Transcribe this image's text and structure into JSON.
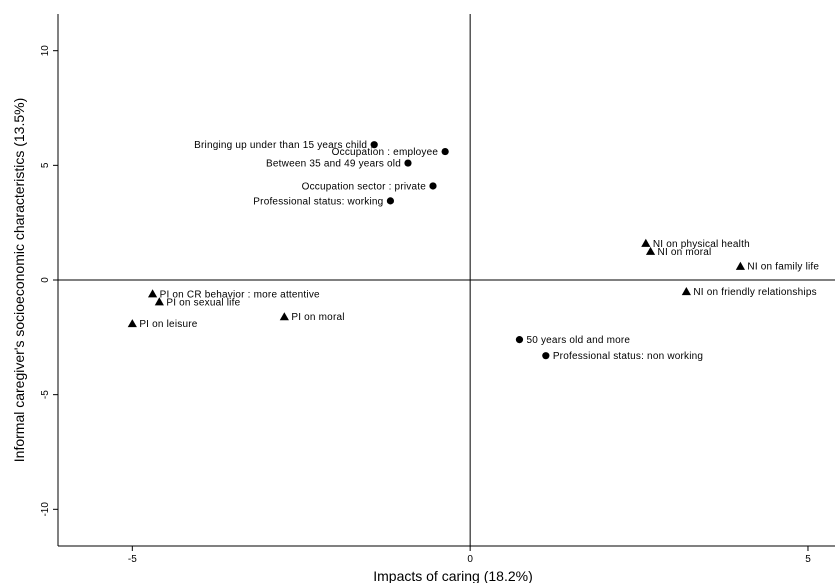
{
  "chart_data": {
    "type": "scatter",
    "xlabel": "Impacts of caring (18.2%)",
    "ylabel": "Informal caregiver's socioeconomic characteristics (13.5%)",
    "xlim": [
      -6.1,
      5.4
    ],
    "ylim": [
      -11.6,
      11.6
    ],
    "x_ticks": [
      -5,
      0,
      5
    ],
    "y_ticks": [
      10,
      5,
      0,
      -5,
      -10
    ],
    "x_tick_labels": [
      "-5",
      "0",
      "5"
    ],
    "y_tick_labels": [
      "10",
      "5",
      "0",
      "-5",
      "-10"
    ],
    "reference_lines": {
      "x": 0,
      "y": 0
    },
    "grid": false,
    "series": [
      {
        "marker": "circle",
        "points": [
          {
            "label": "Bringing up under than 15 years child",
            "x": -1.42,
            "y": 5.9,
            "anchor": "end"
          },
          {
            "label": "Occupation : employee",
            "x": -0.37,
            "y": 5.6,
            "anchor": "end"
          },
          {
            "label": "Between 35 and 49 years old",
            "x": -0.92,
            "y": 5.1,
            "anchor": "end"
          },
          {
            "label": "Occupation sector : private",
            "x": -0.55,
            "y": 4.1,
            "anchor": "end"
          },
          {
            "label": "Professional status: working",
            "x": -1.18,
            "y": 3.45,
            "anchor": "end"
          },
          {
            "label": "50 years old and more",
            "x": 0.73,
            "y": -2.6,
            "anchor": "start"
          },
          {
            "label": "Professional status: non working",
            "x": 1.12,
            "y": -3.3,
            "anchor": "start"
          }
        ]
      },
      {
        "marker": "triangle",
        "points": [
          {
            "label": "NI on physical health",
            "x": 2.6,
            "y": 1.6,
            "anchor": "start"
          },
          {
            "label": "NI on moral",
            "x": 2.67,
            "y": 1.25,
            "anchor": "start"
          },
          {
            "label": "NI on family life",
            "x": 4.0,
            "y": 0.6,
            "anchor": "start"
          },
          {
            "label": "NI on friendly relationships",
            "x": 3.2,
            "y": -0.5,
            "anchor": "start"
          },
          {
            "label": "PI on CR behavior : more attentive",
            "x": -4.7,
            "y": -0.6,
            "anchor": "start"
          },
          {
            "label": "PI on sexual life",
            "x": -4.6,
            "y": -0.95,
            "anchor": "start"
          },
          {
            "label": "PI on leisure",
            "x": -5.0,
            "y": -1.9,
            "anchor": "start"
          },
          {
            "label": "PI on moral",
            "x": -2.75,
            "y": -1.6,
            "anchor": "start"
          }
        ]
      }
    ]
  }
}
